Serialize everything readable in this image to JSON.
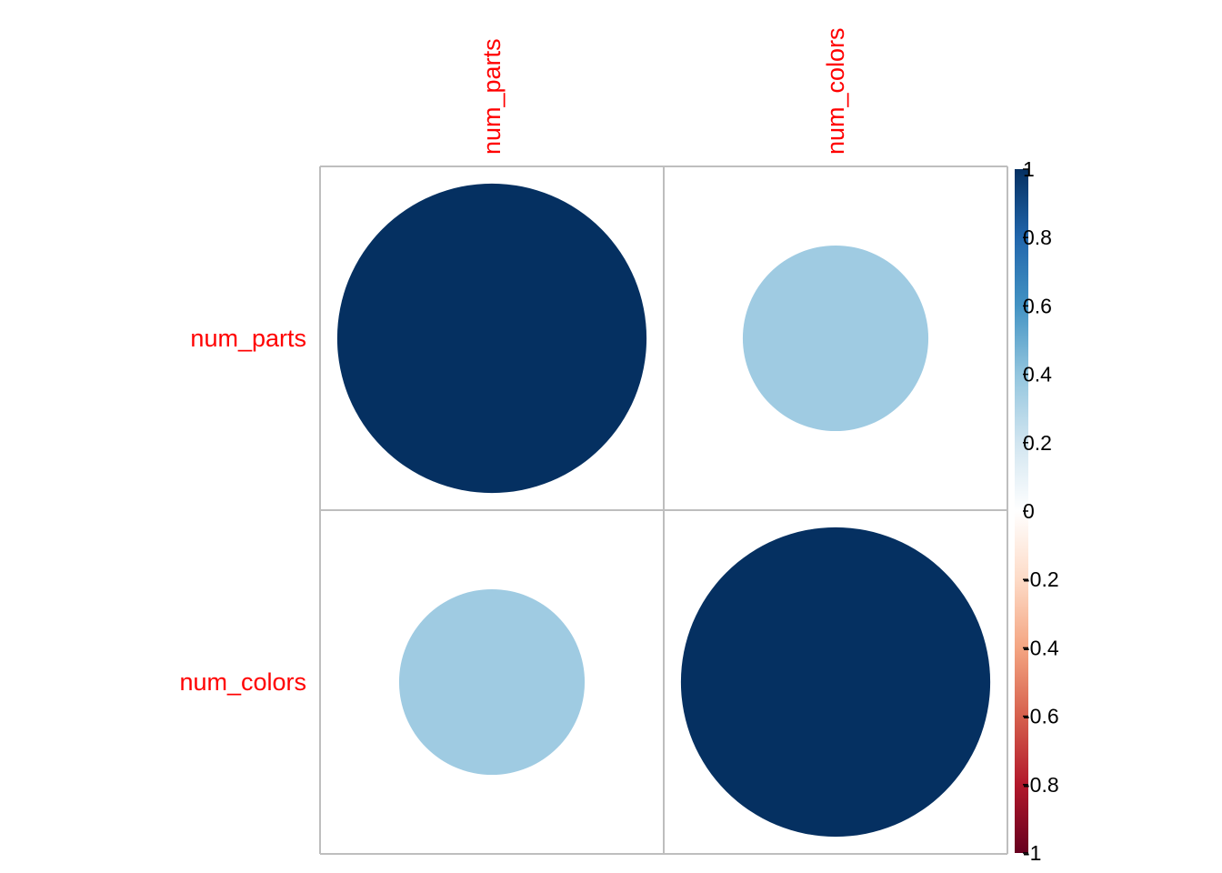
{
  "chart_data": {
    "type": "heatmap",
    "method": "circle",
    "variables": [
      "num_parts",
      "num_colors"
    ],
    "matrix": [
      [
        1,
        0.36
      ],
      [
        0.36,
        1
      ]
    ],
    "label_color": "#ff0000",
    "grid": true,
    "grid_color": "#bebebe",
    "colorbar": {
      "placement": "right",
      "range": [
        -1,
        1
      ],
      "ticks": [
        "-1",
        "-0.8",
        "-0.6",
        "-0.4",
        "-0.2",
        "0",
        "0.2",
        "0.4",
        "0.6",
        "0.8",
        "1"
      ],
      "palette": [
        "#67001f",
        "#b2182b",
        "#d6604d",
        "#f4a582",
        "#fddbc7",
        "#ffffff",
        "#d1e5f0",
        "#92c5de",
        "#4393c3",
        "#2166ac",
        "#053061"
      ]
    }
  }
}
